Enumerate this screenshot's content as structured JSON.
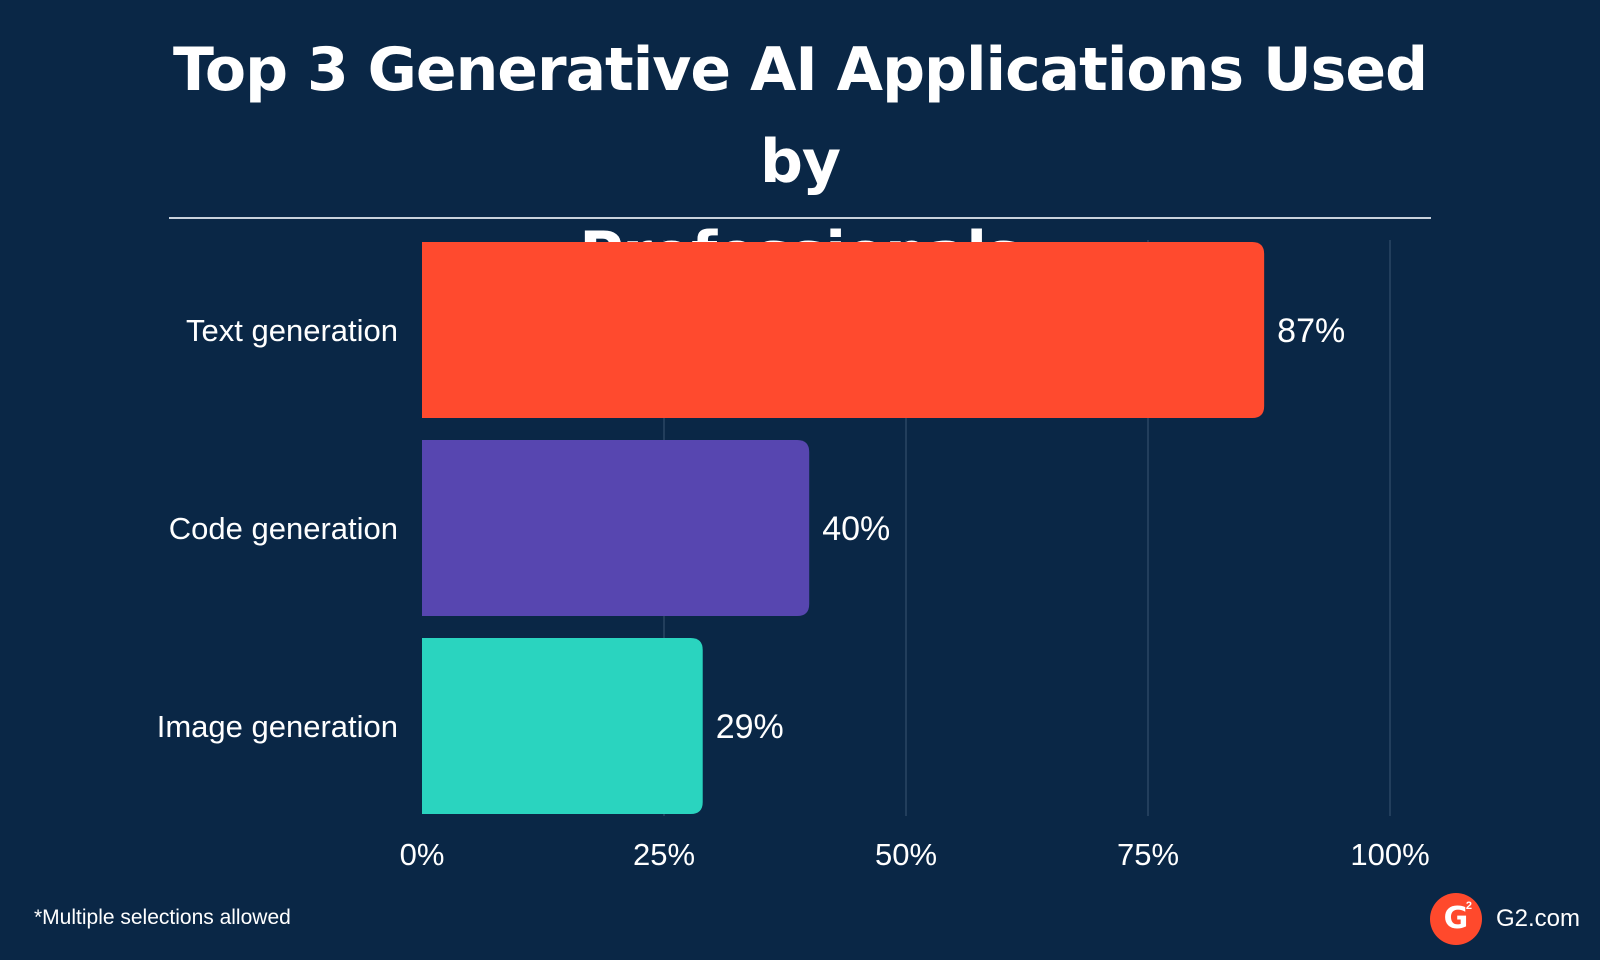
{
  "header": {
    "title_line1": "Top 3 Generative AI Applications Used by",
    "title_line2": "Professionals"
  },
  "chart_data": {
    "type": "bar",
    "orientation": "horizontal",
    "categories": [
      "Text generation",
      "Code generation",
      "Image generation"
    ],
    "values": [
      87,
      40,
      29
    ],
    "value_labels": [
      "87%",
      "40%",
      "29%"
    ],
    "colors": [
      "#ff4a2e",
      "#5746b0",
      "#2ad4bf"
    ],
    "xlim": [
      0,
      100
    ],
    "x_ticks": [
      0,
      25,
      50,
      75,
      100
    ],
    "x_tick_labels": [
      "0%",
      "25%",
      "50%",
      "75%",
      "100%"
    ],
    "grid": true,
    "xlabel": "",
    "ylabel": ""
  },
  "footer": {
    "footnote": "*Multiple selections allowed",
    "logo_letter": "G",
    "logo_superscript": "2",
    "brand_text": "G2.com",
    "logo_color": "#ff492c"
  }
}
